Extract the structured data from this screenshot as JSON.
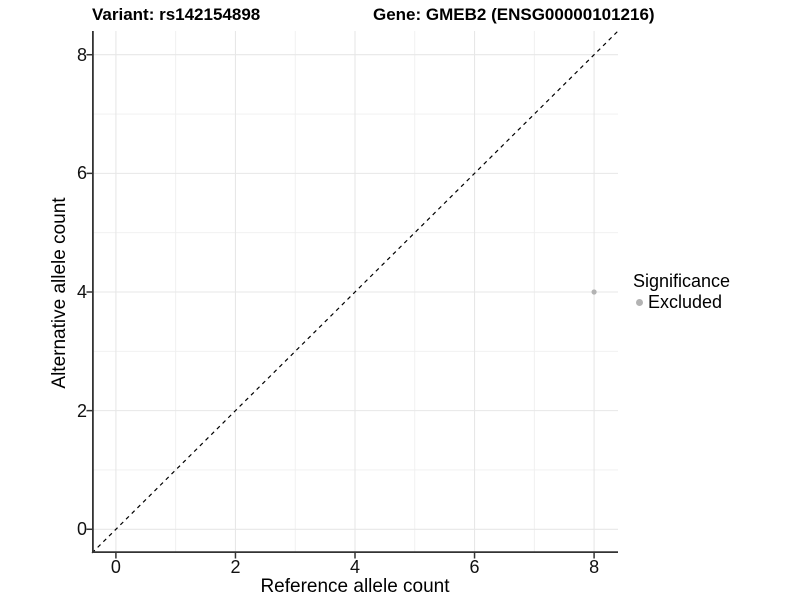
{
  "page": {
    "background": "#ffffff"
  },
  "header": {
    "variant_title": "Variant: rs142154898",
    "gene_title": "Gene: GMEB2 (ENSG00000101216)"
  },
  "legend": {
    "title": "Significance",
    "items": [
      {
        "label": "Excluded",
        "color": "#b3b3b3",
        "marker": "circle-icon"
      }
    ]
  },
  "chart_data": {
    "type": "scatter",
    "title": "Variant: rs142154898 | Gene: GMEB2 (ENSG00000101216)",
    "xlabel": "Reference allele count",
    "ylabel": "Alternative allele count",
    "xlim": [
      -0.4,
      8.4
    ],
    "ylim": [
      -0.4,
      8.4
    ],
    "xticks": [
      0,
      2,
      4,
      6,
      8
    ],
    "yticks": [
      0,
      2,
      4,
      6,
      8
    ],
    "xticks_minor": [
      1,
      3,
      5,
      7
    ],
    "yticks_minor": [
      1,
      3,
      5,
      7
    ],
    "grid": true,
    "legend_position": "right",
    "reference_line": {
      "type": "identity",
      "equation": "y = x",
      "style": "dashed",
      "color": "#000000"
    },
    "series": [
      {
        "name": "Excluded",
        "color": "#b3b3b3",
        "points": [
          {
            "x": 8,
            "y": 4
          }
        ]
      }
    ],
    "colors": {
      "grid_major": "#e7e7e7",
      "grid_minor": "#efefef",
      "axis_line": "#333333",
      "tick_mark": "#333333"
    }
  }
}
